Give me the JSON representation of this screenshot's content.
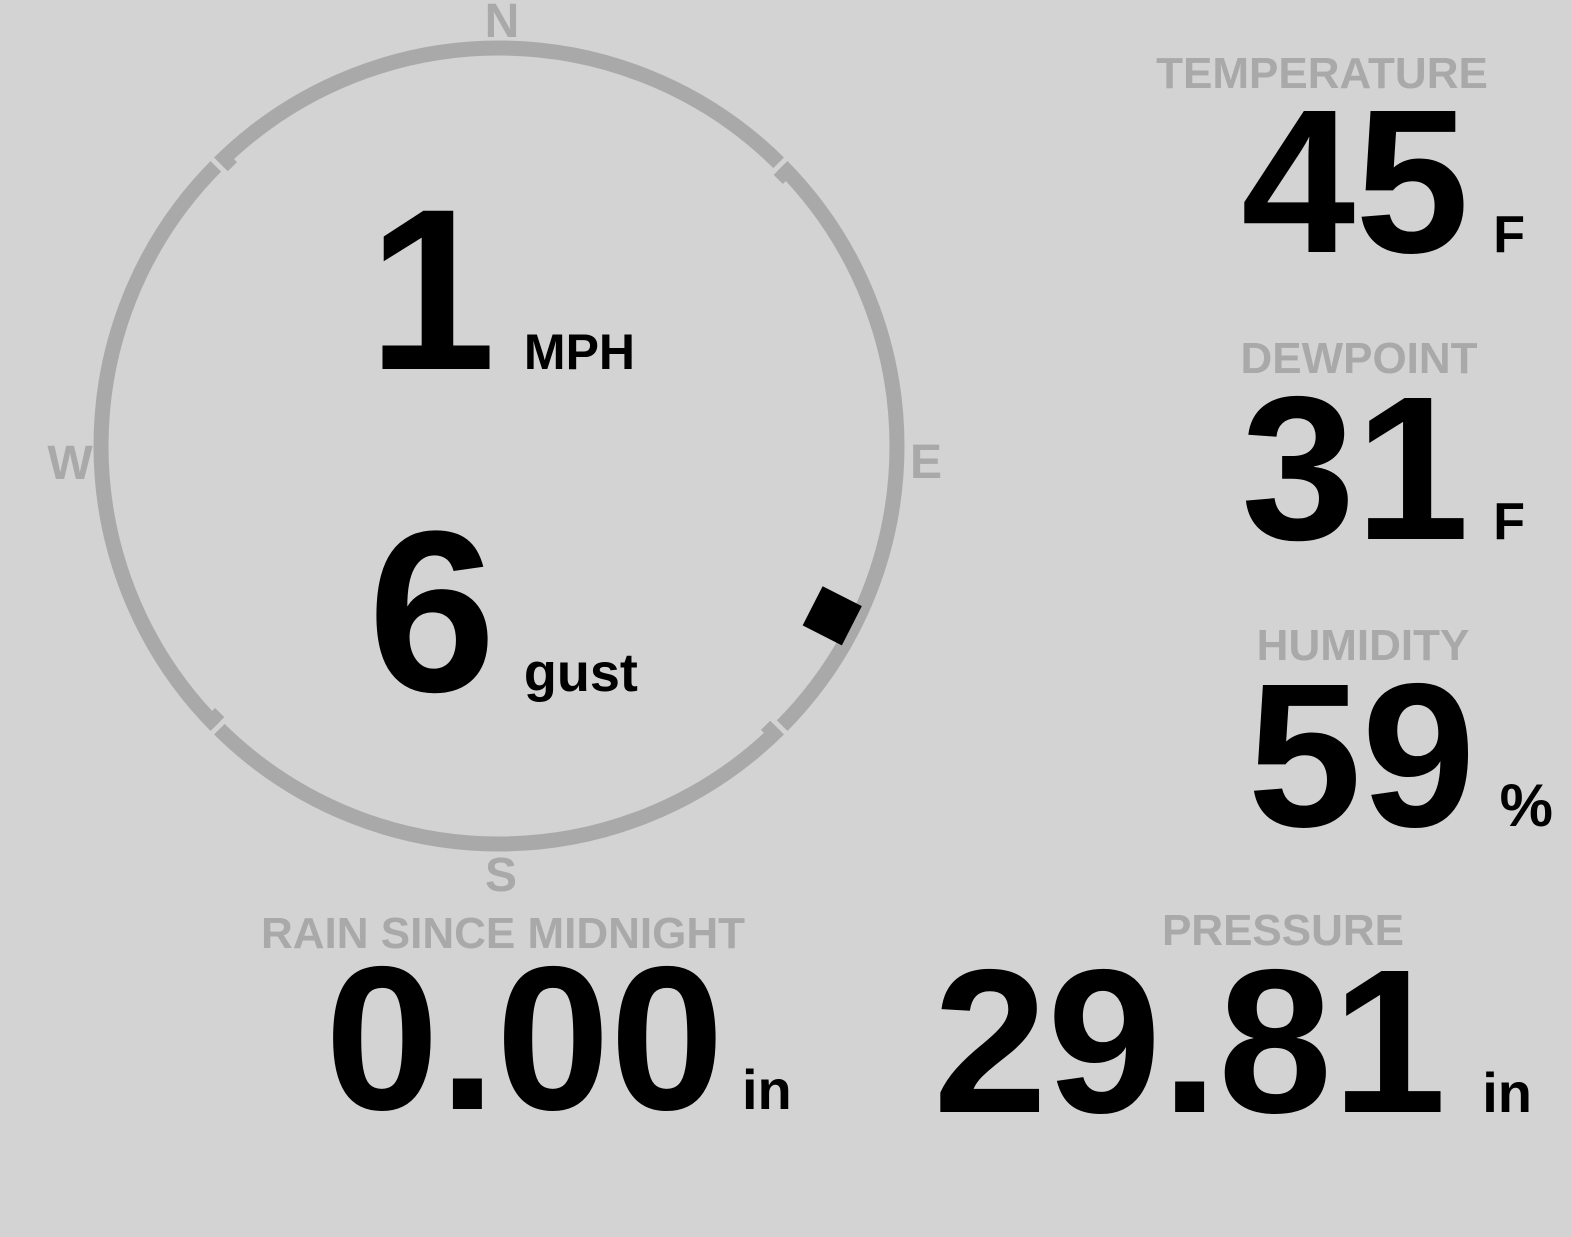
{
  "colors": {
    "background": "#d3d3d3",
    "muted": "#a9a9a9",
    "value": "#000000"
  },
  "wind": {
    "speed": "1",
    "speed_unit": "MPH",
    "gust": "6",
    "gust_unit": "gust",
    "direction_degrees": 117,
    "compass": {
      "north": "N",
      "east": "E",
      "south": "S",
      "west": "W"
    }
  },
  "metrics": {
    "temperature": {
      "label": "TEMPERATURE",
      "value": "45",
      "unit": "F"
    },
    "dewpoint": {
      "label": "DEWPOINT",
      "value": "31",
      "unit": "F"
    },
    "humidity": {
      "label": "HUMIDITY",
      "value": "59",
      "unit": "%"
    },
    "pressure": {
      "label": "PRESSURE",
      "value": "29.81",
      "unit": "in"
    },
    "rain": {
      "label": "RAIN SINCE MIDNIGHT",
      "value": "0.00",
      "unit": "in"
    }
  }
}
